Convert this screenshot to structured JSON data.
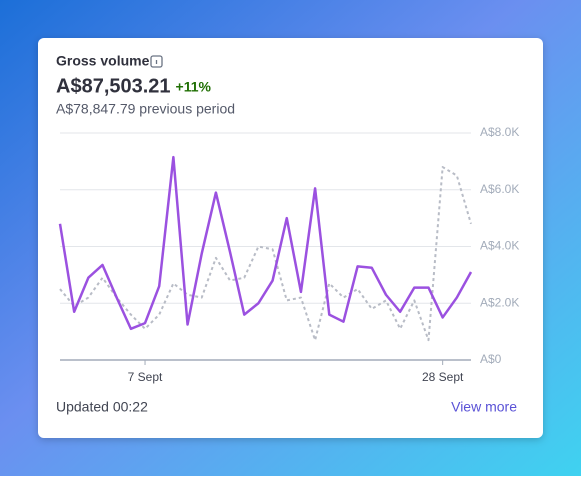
{
  "chart_data": {
    "type": "line",
    "title": "Gross volume",
    "total": "A$87,503.21",
    "change": "+11%",
    "previous": "A$78,847.79 previous period",
    "updated": "Updated 00:22",
    "link": "View more",
    "categories": [
      null,
      null,
      null,
      null,
      null,
      null,
      "7 Sept",
      null,
      null,
      null,
      null,
      null,
      null,
      null,
      null,
      null,
      null,
      null,
      null,
      null,
      null,
      null,
      null,
      null,
      null,
      null,
      null,
      "28 Sept",
      null,
      null
    ],
    "series": [
      {
        "color": "#9b51e0",
        "style": "solid",
        "values": [
          4800,
          1700,
          2900,
          3350,
          2200,
          1100,
          1300,
          2600,
          7150,
          1250,
          3750,
          5900,
          3800,
          1600,
          2000,
          2800,
          5000,
          2400,
          6050,
          1600,
          1350,
          3300,
          3250,
          2300,
          1700,
          2550,
          2550,
          1500,
          2200,
          3100
        ]
      },
      {
        "color": "#b8bcc6",
        "style": "dashed",
        "values": [
          2500,
          1900,
          2200,
          2900,
          2200,
          1600,
          1100,
          1600,
          2700,
          2300,
          2200,
          3600,
          2800,
          2900,
          4000,
          3900,
          2100,
          2200,
          700,
          2700,
          2200,
          2500,
          1800,
          2100,
          1100,
          2100,
          700,
          6800,
          6500,
          4800
        ]
      }
    ],
    "ylim": [
      0,
      8000
    ],
    "yticks": [
      {
        "value": 0,
        "label": "A$0"
      },
      {
        "value": 2000,
        "label": "A$2.0K"
      },
      {
        "value": 4000,
        "label": "A$4.0K"
      },
      {
        "value": 6000,
        "label": "A$6.0K"
      },
      {
        "value": 8000,
        "label": "A$8.0K"
      }
    ],
    "grid": true
  }
}
